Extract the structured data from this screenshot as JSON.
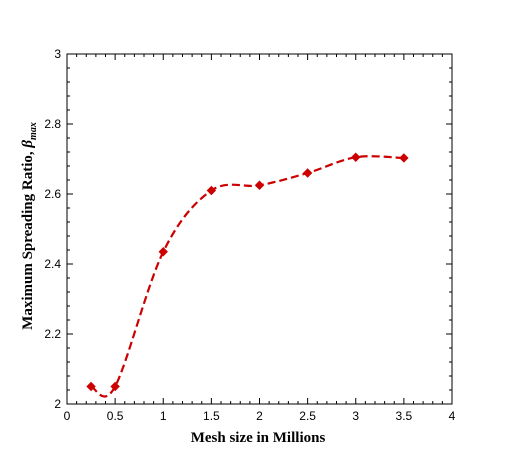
{
  "chart_data": {
    "type": "line",
    "xlabel": "Mesh size in Millions",
    "ylabel_main": "Maximum Spreading Ratio, ",
    "ylabel_symbol": "β",
    "ylabel_sub": "max",
    "xlim": [
      0,
      4
    ],
    "ylim": [
      2,
      3
    ],
    "x_ticks": [
      "0",
      "0.5",
      "1",
      "1.5",
      "2",
      "2.5",
      "3",
      "3.5",
      "4"
    ],
    "y_ticks": [
      "2",
      "2.2",
      "2.4",
      "2.6",
      "2.8",
      "3"
    ],
    "grid": false,
    "series": [
      {
        "color": "#cc0000",
        "line_style": "dashed",
        "marker": "diamond",
        "x": [
          0.25,
          0.5,
          1.0,
          1.5,
          2.0,
          2.5,
          3.0,
          3.5
        ],
        "y": [
          2.05,
          2.05,
          2.435,
          2.61,
          2.625,
          2.66,
          2.705,
          2.703
        ]
      }
    ]
  }
}
